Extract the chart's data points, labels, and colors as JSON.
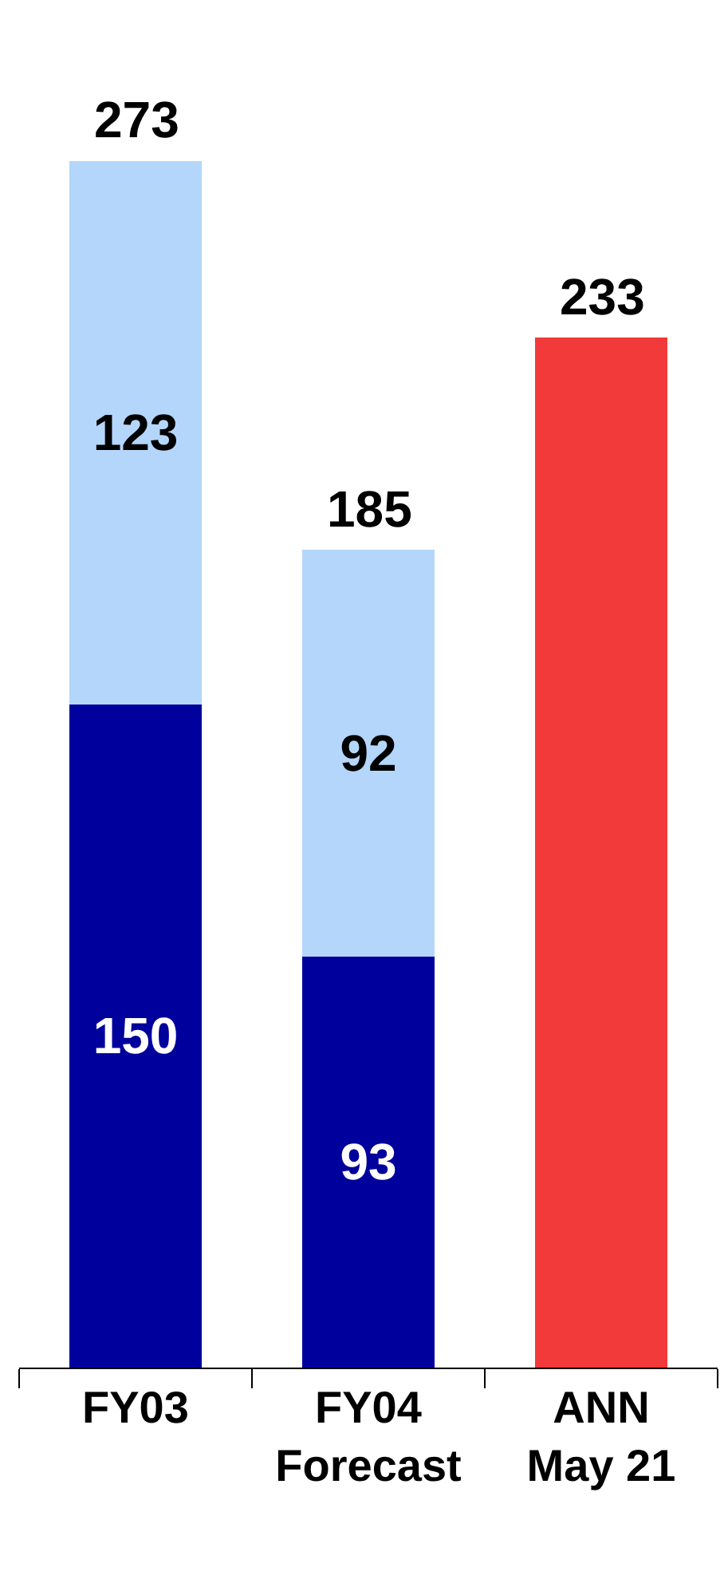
{
  "chart_data": {
    "type": "bar",
    "stacked": true,
    "categories": [
      "FY03",
      "FY04\nForecast",
      "ANN\nMay 21"
    ],
    "series": [
      {
        "color": "#00009c",
        "values": [
          150,
          93,
          null
        ],
        "value_labels": [
          "150",
          "93",
          null
        ]
      },
      {
        "color": "#b4d6fa",
        "values": [
          123,
          92,
          null
        ],
        "value_labels": [
          "123",
          "92",
          null
        ]
      },
      {
        "color": "#f23a3a",
        "values": [
          null,
          null,
          233
        ],
        "value_labels": [
          null,
          null,
          null
        ]
      }
    ],
    "totals": [
      "273",
      "185",
      "233"
    ],
    "legend": false
  }
}
